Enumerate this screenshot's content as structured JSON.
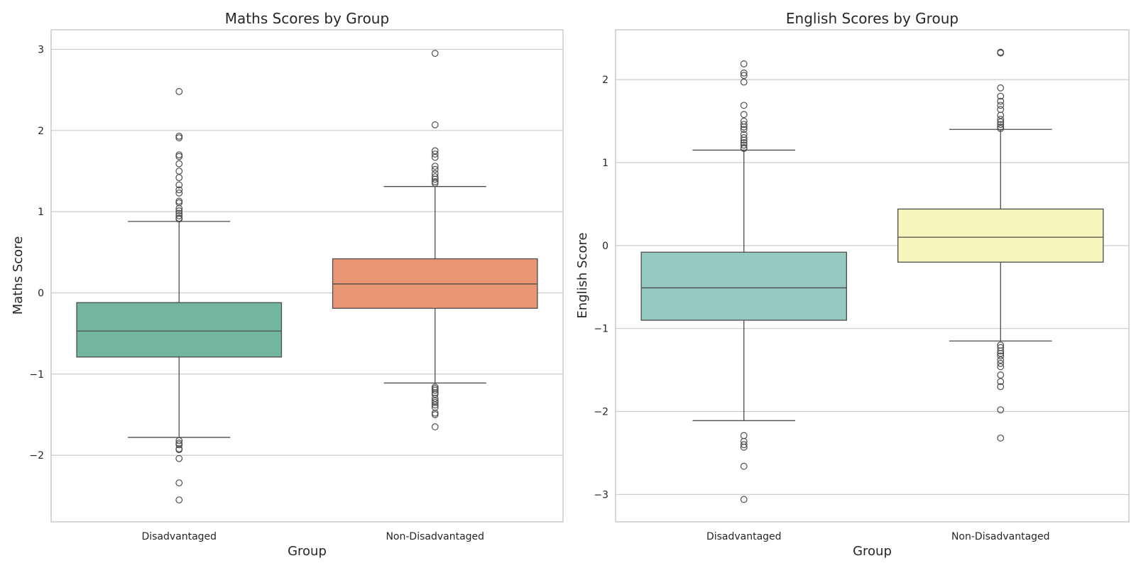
{
  "chart_data": [
    {
      "type": "box",
      "title": "Maths Scores by Group",
      "xlabel": "Group",
      "ylabel": "Maths Score",
      "ylim": [
        -2.82,
        3.24
      ],
      "yticks": [
        -2,
        -1,
        0,
        1,
        2,
        3
      ],
      "ytick_labels": [
        "−2",
        "−1",
        "0",
        "1",
        "2",
        "3"
      ],
      "grid": "horizontal",
      "categories": [
        "Disadvantaged",
        "Non-Disadvantaged"
      ],
      "colors": [
        "#72b6a1",
        "#e99675"
      ],
      "boxes": [
        {
          "category": "Disadvantaged",
          "whisker_low": -1.78,
          "q1": -0.79,
          "median": -0.47,
          "q3": -0.12,
          "whisker_high": 0.88,
          "fliers": [
            2.48,
            1.93,
            1.91,
            1.7,
            1.68,
            1.59,
            1.5,
            1.42,
            1.33,
            1.27,
            1.23,
            1.13,
            1.11,
            1.04,
            1.01,
            0.98,
            0.95,
            0.92,
            0.91,
            -1.82,
            -1.85,
            -1.87,
            -1.92,
            -1.93,
            -2.04,
            -2.34,
            -2.55
          ]
        },
        {
          "category": "Non-Disadvantaged",
          "whisker_low": -1.11,
          "q1": -0.19,
          "median": 0.11,
          "q3": 0.42,
          "whisker_high": 1.31,
          "fliers": [
            2.95,
            2.07,
            1.75,
            1.71,
            1.67,
            1.56,
            1.52,
            1.47,
            1.43,
            1.4,
            1.37,
            1.35,
            -1.16,
            -1.18,
            -1.2,
            -1.23,
            -1.25,
            -1.3,
            -1.33,
            -1.35,
            -1.38,
            -1.41,
            -1.48,
            -1.5,
            -1.65
          ]
        }
      ]
    },
    {
      "type": "box",
      "title": "English Scores by Group",
      "xlabel": "Group",
      "ylabel": "English Score",
      "ylim": [
        -3.33,
        2.6
      ],
      "yticks": [
        -3,
        -2,
        -1,
        0,
        1,
        2
      ],
      "ytick_labels": [
        "−3",
        "−2",
        "−1",
        "0",
        "1",
        "2"
      ],
      "grid": "horizontal",
      "categories": [
        "Disadvantaged",
        "Non-Disadvantaged"
      ],
      "colors": [
        "#96cac1",
        "#f6f6bc"
      ],
      "boxes": [
        {
          "category": "Disadvantaged",
          "whisker_low": -2.11,
          "q1": -0.9,
          "median": -0.51,
          "q3": -0.08,
          "whisker_high": 1.15,
          "fliers": [
            2.19,
            2.08,
            2.05,
            1.97,
            1.69,
            1.58,
            1.5,
            1.46,
            1.43,
            1.4,
            1.34,
            1.3,
            1.27,
            1.24,
            1.21,
            1.18,
            1.17,
            -2.29,
            -2.36,
            -2.4,
            -2.43,
            -2.66,
            -3.06
          ]
        },
        {
          "category": "Non-Disadvantaged",
          "whisker_low": -1.15,
          "q1": -0.2,
          "median": 0.1,
          "q3": 0.44,
          "whisker_high": 1.4,
          "fliers": [
            2.33,
            2.32,
            1.9,
            1.8,
            1.74,
            1.69,
            1.64,
            1.57,
            1.52,
            1.49,
            1.46,
            1.43,
            1.41,
            -1.2,
            -1.23,
            -1.27,
            -1.3,
            -1.33,
            -1.38,
            -1.42,
            -1.46,
            -1.56,
            -1.64,
            -1.7,
            -1.98,
            -2.32
          ]
        }
      ]
    }
  ]
}
